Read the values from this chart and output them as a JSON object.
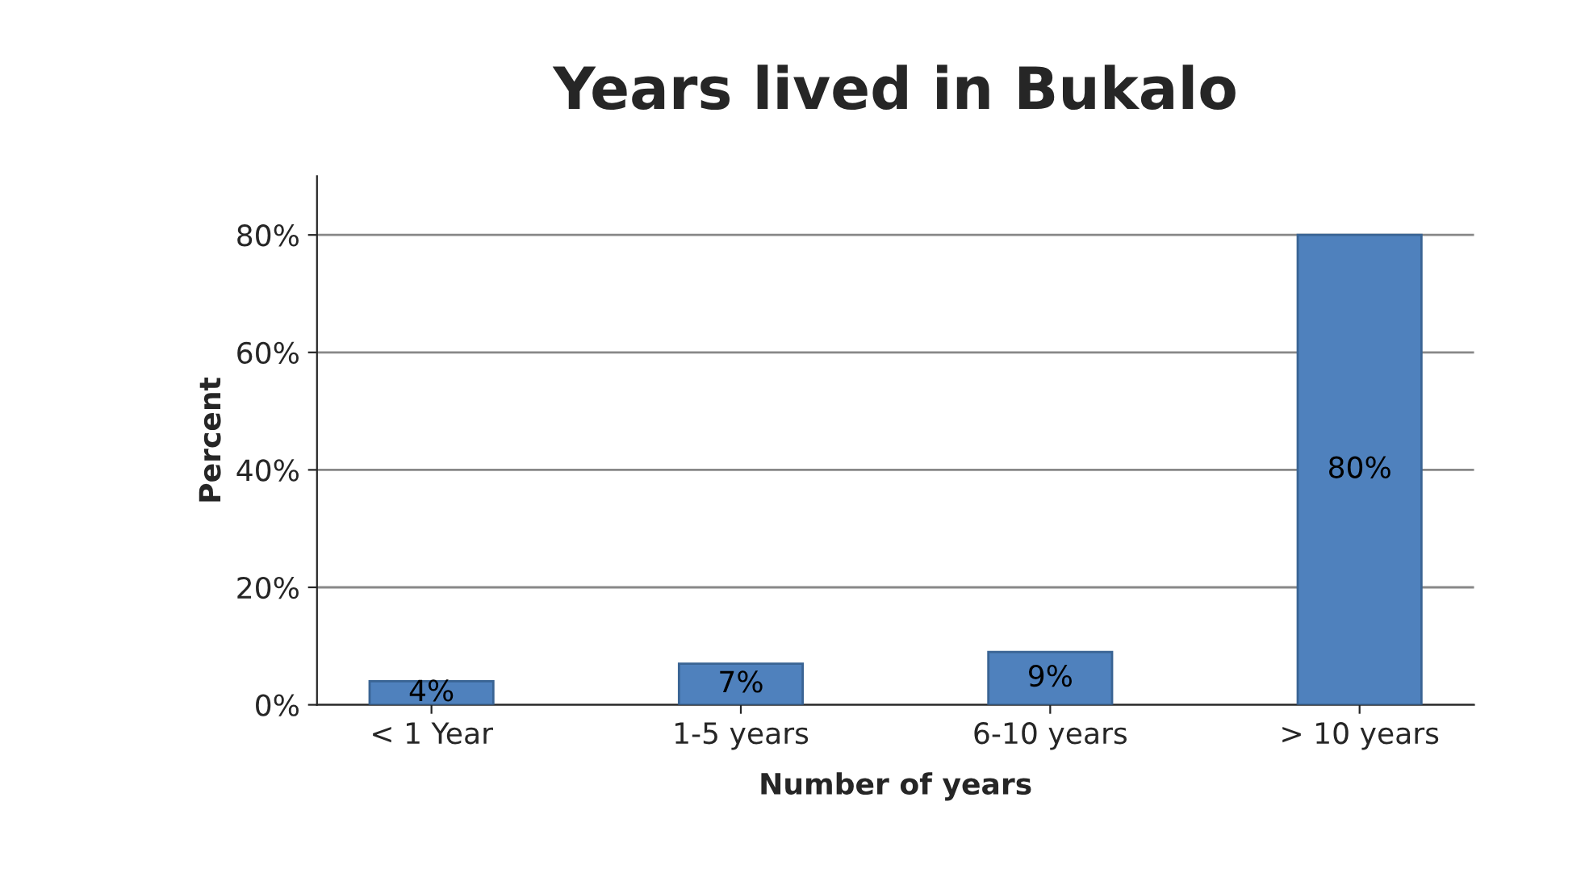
{
  "chart_data": {
    "type": "bar",
    "title": "Years lived in Bukalo",
    "xlabel": "Number of years",
    "ylabel": "Percent",
    "categories": [
      "< 1 Year",
      "1-5 years",
      "6-10 years",
      "> 10 years"
    ],
    "values": [
      4,
      7,
      9,
      80
    ],
    "color": "#4f81bd",
    "value_labels": [
      "4%",
      "7%",
      "9%",
      "80%"
    ],
    "ylim": [
      0,
      90
    ],
    "yticks": [
      {
        "value": 0,
        "label": "0%"
      },
      {
        "value": 20,
        "label": "20%"
      },
      {
        "value": 40,
        "label": "40%"
      },
      {
        "value": 60,
        "label": "60%"
      },
      {
        "value": 80,
        "label": "80%"
      }
    ],
    "grid": "y"
  }
}
